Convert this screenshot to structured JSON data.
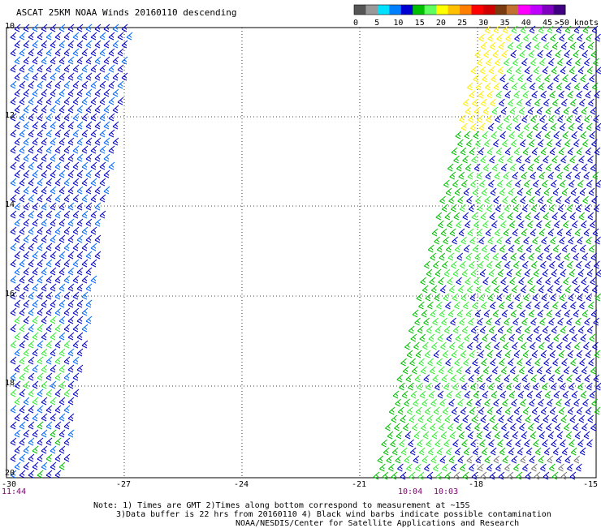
{
  "title": "ASCAT 25KM NOAA Winds 20160110 descending",
  "legend": {
    "unit": ">50 knots",
    "ticks": [
      "0",
      "5",
      "10",
      "15",
      "20",
      "25",
      "30",
      "35",
      "40",
      "45"
    ],
    "colors": [
      "#555555",
      "#999999",
      "#00e0ff",
      "#0080ff",
      "#0000d0",
      "#00c000",
      "#60ff60",
      "#ffff00",
      "#ffc000",
      "#ff8000",
      "#ff0000",
      "#d00000",
      "#7a3a10",
      "#c07030",
      "#ff00ff",
      "#c000ff",
      "#8000c0",
      "#400080"
    ]
  },
  "axes": {
    "lon_labels": [
      "-30",
      "-27",
      "-24",
      "-21",
      "-18",
      "-15"
    ],
    "lat_labels": [
      "10",
      "12",
      "14",
      "16",
      "18",
      "20"
    ]
  },
  "swath_times": [
    "11:44",
    "10:04",
    "10:03"
  ],
  "notes": [
    "Note: 1) Times are GMT 2)Times along bottom correspond to measurement at ~15S",
    "3)Data buffer is 22 hrs from 20160110 4) Black wind barbs indicate possible contamination",
    "NOAA/NESDIS/Center for Satellite Applications and Research"
  ],
  "barb_colors": {
    "low": "#0000cc",
    "mid": "#0066ff",
    "green": "#00c000",
    "lime": "#33ee33",
    "yellow": "#ffee00",
    "gray": "#777777"
  }
}
